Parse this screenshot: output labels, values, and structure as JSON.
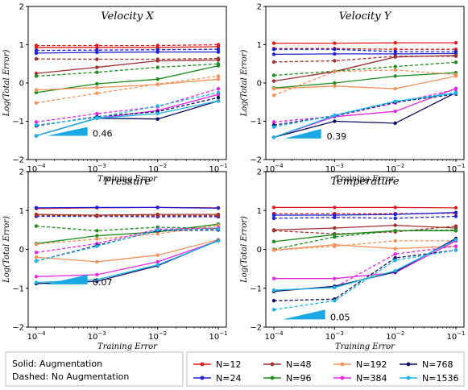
{
  "legend": {
    "style_notes": [
      "Solid: Augmentation",
      "Dashed: No Augmentation"
    ],
    "entries": [
      {
        "label": "N=12",
        "color": "#e41a1c"
      },
      {
        "label": "N=24",
        "color": "#1f1fd6"
      },
      {
        "label": "N=48",
        "color": "#a03030"
      },
      {
        "label": "N=96",
        "color": "#1e8c1e"
      },
      {
        "label": "N=192",
        "color": "#f5915a"
      },
      {
        "label": "N=384",
        "color": "#e528e5"
      },
      {
        "label": "N=768",
        "color": "#0b0b63"
      },
      {
        "label": "N=1536",
        "color": "#1cb4e6"
      }
    ]
  },
  "chart_data": [
    {
      "type": "line",
      "title": "Velocity X",
      "xlabel": "Training Error",
      "ylabel": "Log(Total Error)",
      "x": [
        0.0001,
        0.001,
        0.01,
        0.1
      ],
      "xticks": [
        "10^-4",
        "10^-3",
        "10^-2",
        "10^-1"
      ],
      "xscale": "log",
      "ylim": [
        -2,
        2
      ],
      "yticks": [
        "-2",
        "-1",
        "0",
        "1",
        "2"
      ],
      "slope_label": "0.46",
      "series": [
        {
          "n": "N=12",
          "style": "solid",
          "values": [
            0.93,
            0.93,
            0.93,
            0.95
          ]
        },
        {
          "n": "N=12",
          "style": "dashed",
          "values": [
            0.98,
            0.98,
            0.98,
            1.0
          ]
        },
        {
          "n": "N=24",
          "style": "solid",
          "values": [
            0.78,
            0.8,
            0.81,
            0.81
          ]
        },
        {
          "n": "N=24",
          "style": "dashed",
          "values": [
            0.85,
            0.86,
            0.87,
            0.88
          ]
        },
        {
          "n": "N=48",
          "style": "solid",
          "values": [
            0.25,
            0.41,
            0.58,
            0.6
          ]
        },
        {
          "n": "N=48",
          "style": "dashed",
          "values": [
            0.63,
            0.62,
            0.62,
            0.64
          ]
        },
        {
          "n": "N=96",
          "style": "solid",
          "values": [
            -0.25,
            -0.02,
            0.1,
            0.45
          ]
        },
        {
          "n": "N=96",
          "style": "dashed",
          "values": [
            0.18,
            0.28,
            0.41,
            0.5
          ]
        },
        {
          "n": "N=192",
          "style": "solid",
          "values": [
            -0.18,
            -0.12,
            -0.04,
            0.1
          ]
        },
        {
          "n": "N=192",
          "style": "dashed",
          "values": [
            -0.52,
            -0.27,
            -0.03,
            0.18
          ]
        },
        {
          "n": "N=384",
          "style": "solid",
          "values": [
            -1.38,
            -0.92,
            -0.72,
            -0.3
          ]
        },
        {
          "n": "N=384",
          "style": "dashed",
          "values": [
            -1.02,
            -0.8,
            -0.62,
            -0.15
          ]
        },
        {
          "n": "N=768",
          "style": "solid",
          "values": [
            -1.38,
            -0.92,
            -0.94,
            -0.47
          ]
        },
        {
          "n": "N=768",
          "style": "dashed",
          "values": [
            -1.12,
            -0.88,
            -0.75,
            -0.38
          ]
        },
        {
          "n": "N=1536",
          "style": "solid",
          "values": [
            -1.38,
            -0.92,
            -0.8,
            -0.47
          ]
        },
        {
          "n": "N=1536",
          "style": "dashed",
          "values": [
            -1.1,
            -0.9,
            -0.6,
            -0.25
          ]
        }
      ]
    },
    {
      "type": "line",
      "title": "Velocity Y",
      "xlabel": "Training Error",
      "ylabel": "Log(Total Error)",
      "x": [
        0.0001,
        0.001,
        0.01,
        0.1
      ],
      "xticks": [
        "10^-4",
        "10^-3",
        "10^-2",
        "10^-1"
      ],
      "xscale": "log",
      "ylim": [
        -2,
        2
      ],
      "yticks": [
        "-2",
        "-1",
        "0",
        "1",
        "2"
      ],
      "slope_label": "0.39",
      "series": [
        {
          "n": "N=12",
          "style": "solid",
          "values": [
            1.04,
            1.04,
            1.05,
            1.05
          ]
        },
        {
          "n": "N=12",
          "style": "dashed",
          "values": [
            0.9,
            0.9,
            0.88,
            0.88
          ]
        },
        {
          "n": "N=24",
          "style": "solid",
          "values": [
            0.75,
            0.76,
            0.76,
            0.77
          ]
        },
        {
          "n": "N=24",
          "style": "dashed",
          "values": [
            0.88,
            0.88,
            0.82,
            0.82
          ]
        },
        {
          "n": "N=48",
          "style": "solid",
          "values": [
            0.05,
            0.3,
            0.68,
            0.72
          ]
        },
        {
          "n": "N=48",
          "style": "dashed",
          "values": [
            0.55,
            0.58,
            0.7,
            0.7
          ]
        },
        {
          "n": "N=96",
          "style": "solid",
          "values": [
            -0.13,
            0.0,
            0.18,
            0.27
          ]
        },
        {
          "n": "N=96",
          "style": "dashed",
          "values": [
            0.2,
            0.31,
            0.43,
            0.54
          ]
        },
        {
          "n": "N=192",
          "style": "solid",
          "values": [
            -0.15,
            -0.08,
            -0.15,
            0.18
          ]
        },
        {
          "n": "N=192",
          "style": "dashed",
          "values": [
            -0.32,
            0.3,
            0.34,
            0.22
          ]
        },
        {
          "n": "N=384",
          "style": "solid",
          "values": [
            -1.42,
            -0.88,
            -0.74,
            -0.14
          ]
        },
        {
          "n": "N=384",
          "style": "dashed",
          "values": [
            -1.02,
            -0.87,
            -0.52,
            -0.17
          ]
        },
        {
          "n": "N=768",
          "style": "solid",
          "values": [
            -1.42,
            -1.0,
            -1.05,
            -0.25
          ]
        },
        {
          "n": "N=768",
          "style": "dashed",
          "values": [
            -1.1,
            -0.86,
            -0.5,
            -0.29
          ]
        },
        {
          "n": "N=1536",
          "style": "solid",
          "values": [
            -1.42,
            -0.85,
            -0.48,
            -0.27
          ]
        },
        {
          "n": "N=1536",
          "style": "dashed",
          "values": [
            -1.15,
            -0.84,
            -0.48,
            -0.25
          ]
        }
      ]
    },
    {
      "type": "line",
      "title": "Pressure",
      "xlabel": "Training Error",
      "ylabel": "Log(Total Error)",
      "x": [
        0.0001,
        0.001,
        0.01,
        0.1
      ],
      "xticks": [
        "10^-4",
        "10^-3",
        "10^-2",
        "10^-1"
      ],
      "xscale": "log",
      "ylim": [
        -2,
        2
      ],
      "yticks": [
        "-2",
        "-1",
        "0",
        "1",
        "2"
      ],
      "slope_label": "0.07",
      "series": [
        {
          "n": "N=12",
          "style": "solid",
          "values": [
            1.05,
            1.07,
            1.08,
            1.07
          ]
        },
        {
          "n": "N=12",
          "style": "dashed",
          "values": [
            0.88,
            0.87,
            0.86,
            0.85
          ]
        },
        {
          "n": "N=24",
          "style": "solid",
          "values": [
            1.07,
            1.08,
            1.08,
            1.06
          ]
        },
        {
          "n": "N=24",
          "style": "dashed",
          "values": [
            0.85,
            0.85,
            0.84,
            0.84
          ]
        },
        {
          "n": "N=48",
          "style": "solid",
          "values": [
            0.9,
            0.88,
            0.9,
            0.9
          ]
        },
        {
          "n": "N=48",
          "style": "dashed",
          "values": [
            0.88,
            0.86,
            0.87,
            0.87
          ]
        },
        {
          "n": "N=96",
          "style": "solid",
          "values": [
            0.15,
            0.35,
            0.45,
            0.65
          ]
        },
        {
          "n": "N=96",
          "style": "dashed",
          "values": [
            0.6,
            0.48,
            0.57,
            0.54
          ]
        },
        {
          "n": "N=192",
          "style": "solid",
          "values": [
            -0.2,
            -0.32,
            -0.15,
            0.25
          ]
        },
        {
          "n": "N=192",
          "style": "dashed",
          "values": [
            0.13,
            0.27,
            0.4,
            0.62
          ]
        },
        {
          "n": "N=384",
          "style": "solid",
          "values": [
            -0.7,
            -0.65,
            -0.32,
            0.22
          ]
        },
        {
          "n": "N=384",
          "style": "dashed",
          "values": [
            -0.08,
            0.15,
            0.52,
            0.55
          ]
        },
        {
          "n": "N=768",
          "style": "solid",
          "values": [
            -0.88,
            -0.82,
            -0.42,
            0.23
          ]
        },
        {
          "n": "N=768",
          "style": "dashed",
          "values": [
            -0.3,
            0.1,
            0.48,
            0.5
          ]
        },
        {
          "n": "N=1536",
          "style": "solid",
          "values": [
            -0.85,
            -0.78,
            -0.4,
            0.22
          ]
        },
        {
          "n": "N=1536",
          "style": "dashed",
          "values": [
            -0.3,
            0.08,
            0.5,
            0.52
          ]
        }
      ]
    },
    {
      "type": "line",
      "title": "Temperature",
      "xlabel": "Training Error",
      "ylabel": "Log(Total Error)",
      "x": [
        0.0001,
        0.001,
        0.01,
        0.1
      ],
      "xticks": [
        "10^-4",
        "10^-3",
        "10^-2",
        "10^-1"
      ],
      "xscale": "log",
      "ylim": [
        -2,
        2
      ],
      "yticks": [
        "-2",
        "-1",
        "0",
        "1",
        "2"
      ],
      "slope_label": "0.05",
      "series": [
        {
          "n": "N=12",
          "style": "solid",
          "values": [
            1.08,
            1.08,
            1.08,
            1.07
          ]
        },
        {
          "n": "N=12",
          "style": "dashed",
          "values": [
            0.92,
            0.92,
            0.92,
            0.93
          ]
        },
        {
          "n": "N=24",
          "style": "solid",
          "values": [
            0.88,
            0.88,
            0.9,
            0.95
          ]
        },
        {
          "n": "N=24",
          "style": "dashed",
          "values": [
            0.8,
            0.82,
            0.8,
            0.85
          ]
        },
        {
          "n": "N=48",
          "style": "solid",
          "values": [
            0.5,
            0.55,
            0.62,
            0.55
          ]
        },
        {
          "n": "N=48",
          "style": "dashed",
          "values": [
            0.48,
            0.4,
            0.45,
            0.6
          ]
        },
        {
          "n": "N=96",
          "style": "solid",
          "values": [
            0.2,
            0.38,
            0.48,
            0.48
          ]
        },
        {
          "n": "N=96",
          "style": "dashed",
          "values": [
            0.0,
            0.32,
            0.48,
            0.5
          ]
        },
        {
          "n": "N=192",
          "style": "solid",
          "values": [
            -0.02,
            0.12,
            0.02,
            0.08
          ]
        },
        {
          "n": "N=192",
          "style": "dashed",
          "values": [
            -0.02,
            0.08,
            0.22,
            0.22
          ]
        },
        {
          "n": "N=384",
          "style": "solid",
          "values": [
            -0.75,
            -0.75,
            -0.6,
            0.22
          ]
        },
        {
          "n": "N=384",
          "style": "dashed",
          "values": [
            -1.05,
            -0.98,
            -0.12,
            0.08
          ]
        },
        {
          "n": "N=768",
          "style": "solid",
          "values": [
            -1.08,
            -0.95,
            -0.58,
            0.28
          ]
        },
        {
          "n": "N=768",
          "style": "dashed",
          "values": [
            -1.32,
            -1.28,
            -0.22,
            -0.02
          ]
        },
        {
          "n": "N=1536",
          "style": "solid",
          "values": [
            -1.05,
            -0.98,
            -0.55,
            0.25
          ]
        },
        {
          "n": "N=1536",
          "style": "dashed",
          "values": [
            -1.55,
            -1.32,
            -0.28,
            -0.02
          ]
        }
      ]
    }
  ]
}
